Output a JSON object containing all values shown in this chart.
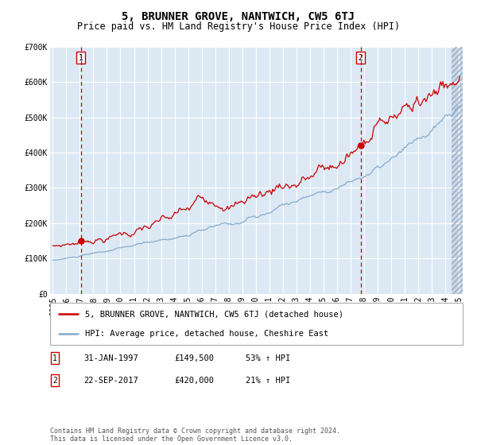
{
  "title": "5, BRUNNER GROVE, NANTWICH, CW5 6TJ",
  "subtitle": "Price paid vs. HM Land Registry's House Price Index (HPI)",
  "ylim": [
    0,
    700000
  ],
  "yticks": [
    0,
    100000,
    200000,
    300000,
    400000,
    500000,
    600000,
    700000
  ],
  "ytick_labels": [
    "£0",
    "£100K",
    "£200K",
    "£300K",
    "£400K",
    "£500K",
    "£600K",
    "£700K"
  ],
  "x_start_year": 1995,
  "x_end_year": 2025,
  "sale1_price": 149500,
  "sale1_label": "1",
  "sale1_x": 1997.08,
  "sale2_price": 420000,
  "sale2_label": "2",
  "sale2_x": 2017.75,
  "red_color": "#CC0000",
  "blue_color": "#88AACC",
  "bg_color": "#dce9f5",
  "grid_color": "#ffffff",
  "legend_line1": "5, BRUNNER GROVE, NANTWICH, CW5 6TJ (detached house)",
  "legend_line2": "HPI: Average price, detached house, Cheshire East",
  "table_row1": [
    "1",
    "31-JAN-1997",
    "£149,500",
    "53% ↑ HPI"
  ],
  "table_row2": [
    "2",
    "22-SEP-2017",
    "£420,000",
    "21% ↑ HPI"
  ],
  "footnote": "Contains HM Land Registry data © Crown copyright and database right 2024.\nThis data is licensed under the Open Government Licence v3.0.",
  "title_fontsize": 10,
  "subtitle_fontsize": 8.5,
  "tick_fontsize": 7,
  "legend_fontsize": 7.5,
  "table_fontsize": 7.5,
  "footnote_fontsize": 6
}
